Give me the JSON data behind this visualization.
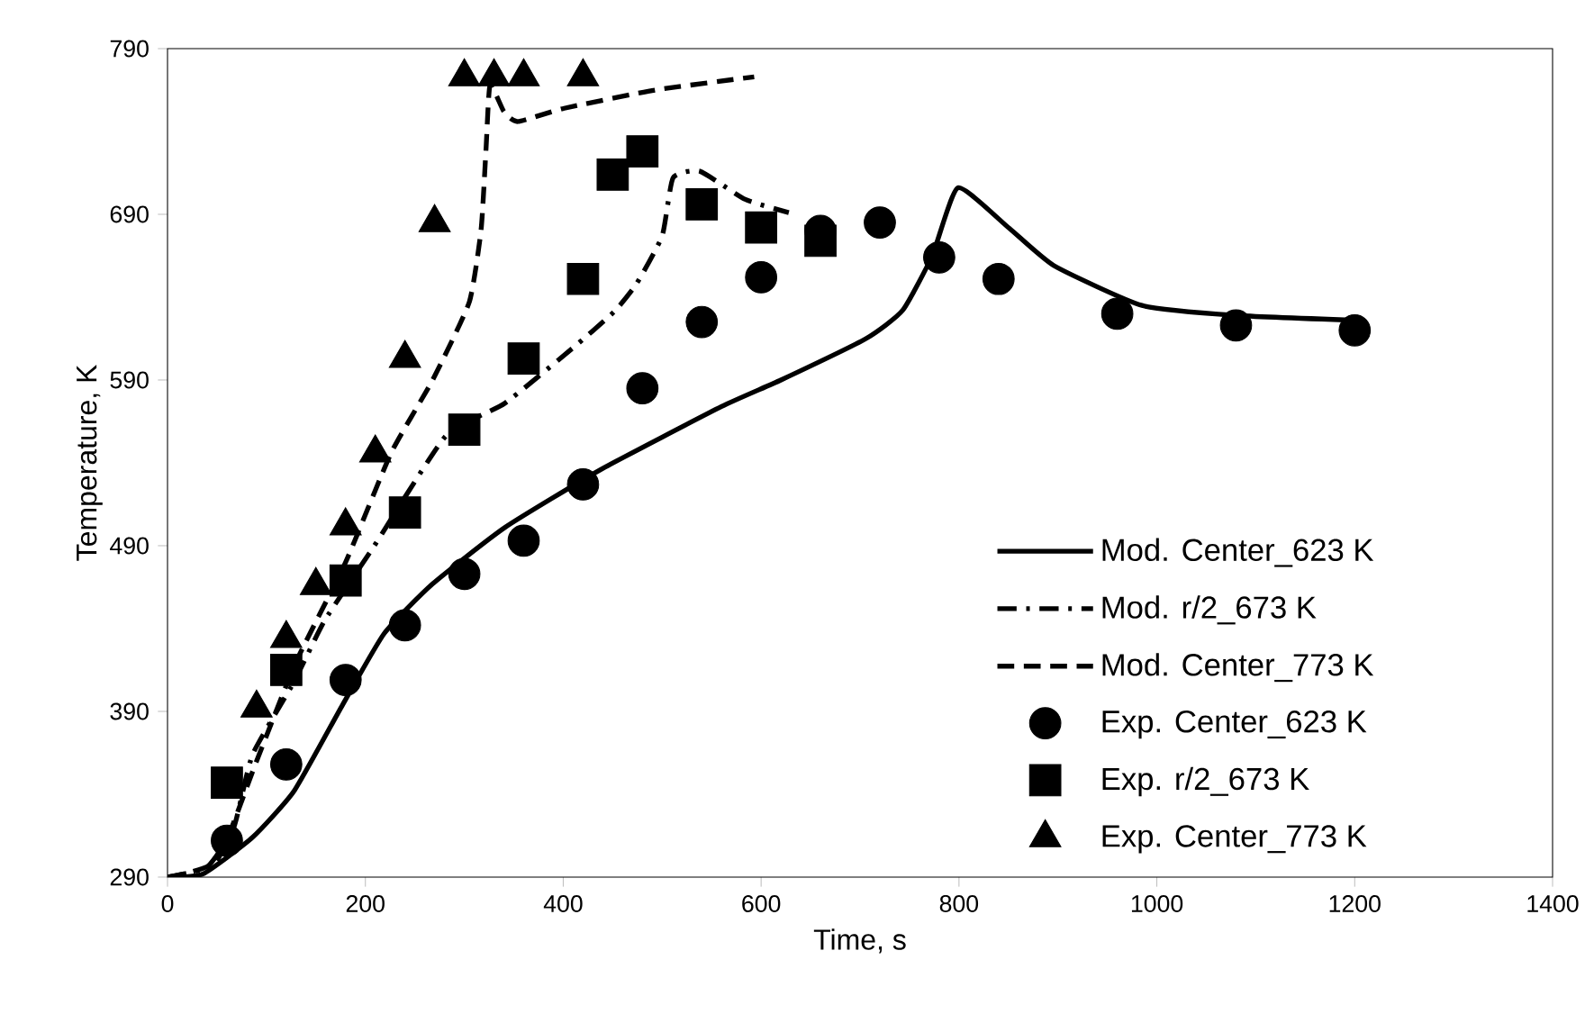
{
  "chart_data": {
    "type": "line",
    "xlabel": "Time, s",
    "ylabel": "Temperature, K",
    "xlim": [
      0,
      1400
    ],
    "ylim": [
      290,
      790
    ],
    "xticks": [
      0,
      200,
      400,
      600,
      800,
      1000,
      1200,
      1400
    ],
    "yticks": [
      290,
      390,
      490,
      590,
      690,
      790
    ],
    "grid": false,
    "legend": "bottom right",
    "series": [
      {
        "name": "Mod. Center_623 K",
        "color": "#000000",
        "line_style": "solid",
        "marker": "none",
        "x": [
          0,
          36,
          86,
          128,
          177,
          219,
          268,
          341,
          438,
          560,
          620,
          706,
          743,
          773,
          799,
          850,
          896,
          985,
          1080,
          1203
        ],
        "values": [
          290,
          292,
          314,
          342,
          394,
          437,
          467,
          501,
          536,
          574,
          590,
          615,
          632,
          665,
          706,
          682,
          659,
          635,
          629,
          626
        ]
      },
      {
        "name": "Mod. r/2_673 K",
        "color": "#000000",
        "line_style": "dashdot",
        "marker": "none",
        "x": [
          0,
          40,
          67,
          86,
          128,
          159,
          208,
          281,
          341,
          409,
          451,
          474,
          500,
          511,
          538,
          584,
          628
        ],
        "values": [
          290,
          296,
          320,
          364,
          408,
          445,
          489,
          556,
          576,
          609,
          631,
          648,
          677,
          712,
          716,
          699,
          691
        ]
      },
      {
        "name": "Mod. Center_773 K",
        "color": "#000000",
        "line_style": "dashed",
        "marker": "none",
        "x": [
          0,
          50,
          90,
          130,
          180,
          226,
          268,
          305,
          317,
          322,
          326,
          340,
          354,
          401,
          493,
          593
        ],
        "values": [
          290,
          300,
          360,
          420,
          480,
          546,
          590,
          637,
          681,
          730,
          768,
          752,
          746,
          754,
          765,
          773
        ]
      },
      {
        "name": "Exp. Center_623 K",
        "type": "scatter",
        "color": "#000000",
        "marker": "circle",
        "x": [
          60,
          120,
          180,
          240,
          300,
          360,
          420,
          480,
          540,
          600,
          660,
          720,
          780,
          840,
          960,
          1080,
          1200
        ],
        "values": [
          312,
          358,
          409,
          442,
          473,
          493,
          527,
          585,
          625,
          652,
          680,
          685,
          664,
          651,
          630,
          623,
          620
        ]
      },
      {
        "name": "Exp. r/2_673 K",
        "type": "scatter",
        "color": "#000000",
        "marker": "square",
        "x": [
          60,
          120,
          180,
          240,
          300,
          360,
          420,
          450,
          480,
          540,
          600,
          660
        ],
        "values": [
          347,
          415,
          469,
          510,
          560,
          603,
          651,
          714,
          728,
          696,
          682,
          674
        ]
      },
      {
        "name": "Exp. Center_773 K",
        "type": "scatter",
        "color": "#000000",
        "marker": "triangle",
        "x": [
          90,
          120,
          150,
          180,
          210,
          240,
          270,
          300,
          330,
          360,
          420
        ],
        "values": [
          392,
          434,
          466,
          502,
          546,
          603,
          685,
          773,
          773,
          773,
          773
        ]
      }
    ]
  }
}
